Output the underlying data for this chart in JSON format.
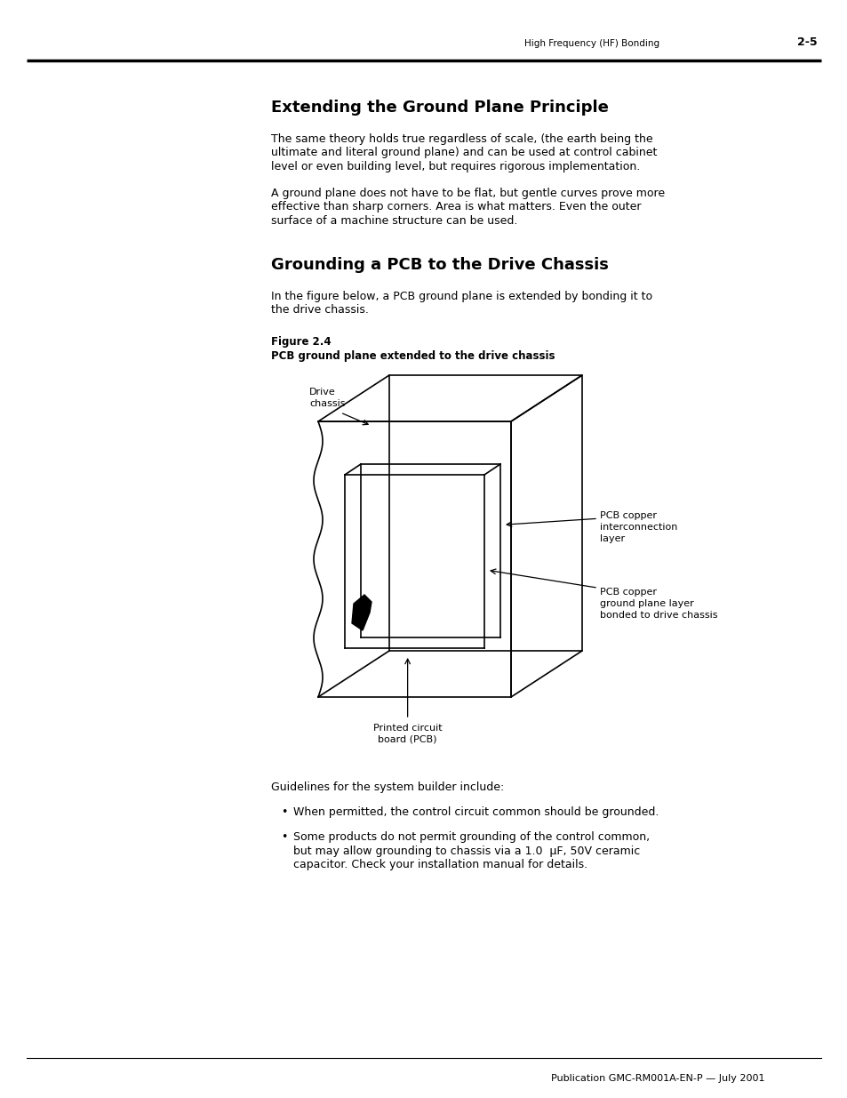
{
  "page_header_text": "High Frequency (HF) Bonding",
  "page_header_number": "2-5",
  "footer_text": "Publication GMC-RM001A-EN-P — July 2001",
  "section1_title": "Extending the Ground Plane Principle",
  "section1_para1_lines": [
    "The same theory holds true regardless of scale, (the earth being the",
    "ultimate and literal ground plane) and can be used at control cabinet",
    "level or even building level, but requires rigorous implementation."
  ],
  "section1_para2_lines": [
    "A ground plane does not have to be flat, but gentle curves prove more",
    "effective than sharp corners. Area is what matters. Even the outer",
    "surface of a machine structure can be used."
  ],
  "section2_title": "Grounding a PCB to the Drive Chassis",
  "section2_para_lines": [
    "In the figure below, a PCB ground plane is extended by bonding it to",
    "the drive chassis."
  ],
  "fig_label": "Figure 2.4",
  "fig_caption": "PCB ground plane extended to the drive chassis",
  "label_drive_chassis": [
    "Drive",
    "chassis"
  ],
  "label_pcb_interconnect": [
    "PCB copper",
    "interconnection",
    "layer"
  ],
  "label_pcb_ground": [
    "PCB copper",
    "ground plane layer",
    "bonded to drive chassis"
  ],
  "label_pcb": [
    "Printed circuit",
    "board (PCB)"
  ],
  "guidelines_text": "Guidelines for the system builder include:",
  "bullet1": "When permitted, the control circuit common should be grounded.",
  "bullet2_lines": [
    "Some products do not permit grounding of the control common,",
    "but may allow grounding to chassis via a 1.0  µF, 50V ceramic",
    "capacitor. Check your installation manual for details."
  ],
  "background_color": "#ffffff"
}
